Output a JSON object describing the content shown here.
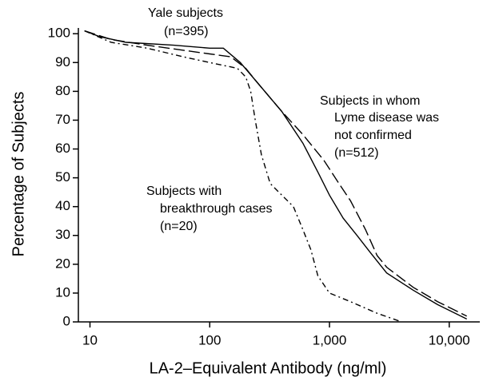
{
  "chart_data": {
    "type": "line",
    "xlabel": "LA-2–Equivalent Antibody (ng/ml)",
    "ylabel": "Percentage of Subjects",
    "xscale": "log",
    "xlim": [
      8,
      18000
    ],
    "ylim": [
      0,
      102
    ],
    "xticks": [
      10,
      100,
      {
        "value": 1000,
        "label": "1,000"
      },
      {
        "value": 10000,
        "label": "10,000"
      }
    ],
    "yticks": [
      0,
      10,
      20,
      30,
      40,
      50,
      60,
      70,
      80,
      90,
      100
    ],
    "series": [
      {
        "color": "#000000",
        "dash": "solid",
        "x": [
          9,
          12,
          20,
          50,
          100,
          130,
          180,
          250,
          400,
          600,
          800,
          1000,
          1300,
          1700,
          2200,
          3000,
          5000,
          8000,
          14000
        ],
        "values": [
          101,
          99,
          97,
          96,
          95,
          95,
          90,
          83,
          73,
          62,
          52,
          44,
          36,
          30,
          24,
          17,
          11,
          6,
          1
        ]
      },
      {
        "color": "#000000",
        "dash": "dashed",
        "x": [
          9,
          15,
          30,
          100,
          150,
          200,
          250,
          400,
          600,
          900,
          1200,
          1500,
          2000,
          2500,
          3000,
          5000,
          8000,
          14000
        ],
        "values": [
          101,
          98,
          96,
          93,
          92,
          88,
          83,
          73,
          65,
          56,
          48,
          42,
          32,
          23,
          19,
          12,
          7,
          2
        ]
      },
      {
        "color": "#000000",
        "dash": "dashdot",
        "x": [
          9,
          15,
          30,
          60,
          100,
          170,
          200,
          220,
          240,
          270,
          320,
          400,
          500,
          600,
          700,
          800,
          1000,
          1500,
          2500,
          4000
        ],
        "values": [
          101,
          97,
          95,
          92,
          90,
          88,
          85,
          80,
          70,
          58,
          48,
          44,
          40,
          32,
          25,
          16,
          10,
          7,
          3,
          0
        ]
      }
    ],
    "annotations": [
      {
        "lines": [
          "Yale subjects",
          "(n=395)"
        ]
      },
      {
        "lines": [
          "Subjects in whom",
          "Lyme disease was",
          "not confirmed",
          "(n=512)"
        ]
      },
      {
        "lines": [
          "Subjects with",
          "breakthrough cases",
          "(n=20)"
        ]
      }
    ]
  }
}
